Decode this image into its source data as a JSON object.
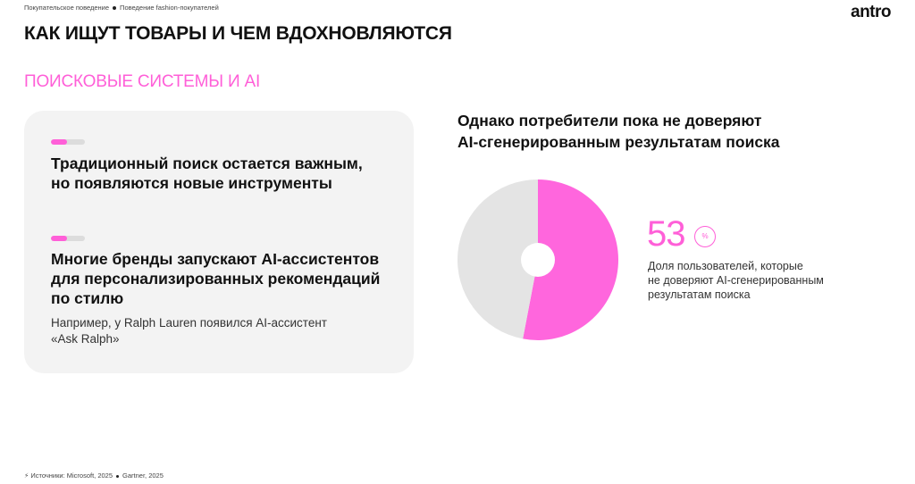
{
  "header": {
    "breadcrumbs": [
      "Покупательское поведение",
      "Поведение fashion-покупателей"
    ],
    "logo": "antro",
    "title": "КАК ИЩУТ ТОВАРЫ И ЧЕМ ВДОХНОВЛЯЮТСЯ"
  },
  "section_title": "ПОИСКОВЫЕ СИСТЕМЫ И AI",
  "card": {
    "items": [
      {
        "lines": [
          "Традиционный поиск остается важным,",
          "но появляются новые инструменты"
        ]
      },
      {
        "lines": [
          "Многие бренды запускают AI-ассистентов",
          "для персонализированных рекомендаций",
          "по стилю"
        ],
        "note": [
          "Например, у Ralph Lauren появился AI-ассистент",
          "«Ask Ralph»"
        ]
      }
    ]
  },
  "chart_data": {
    "type": "pie",
    "title": [
      "Однако потребители пока не доверяют",
      "AI-сгенерированным результатам поиска"
    ],
    "values": [
      53,
      47
    ],
    "colors": [
      "#ff66dd",
      "#e4e4e4"
    ],
    "unit": "%",
    "annotation": [
      "Доля пользователей, которые",
      "не доверяют AI-сгенерированным",
      "результатам поиска"
    ]
  },
  "footer": {
    "label": "Источники:",
    "sources": [
      "Microsoft, 2025",
      "Gartner, 2025"
    ]
  }
}
